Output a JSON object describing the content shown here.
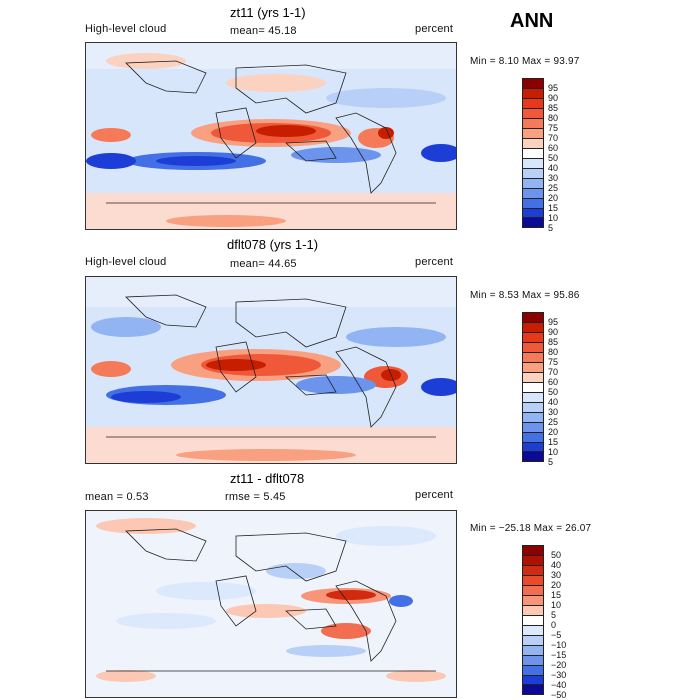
{
  "season": "ANN",
  "chart_data": [
    {
      "type": "heatmap",
      "title": "zt11 (yrs 1-1)",
      "left_label": "High-level cloud",
      "center_label": "mean=  45.18",
      "right_label": "percent",
      "stats": "Min =    8.10  Max =    93.97",
      "mean": 45.18,
      "min": 8.1,
      "max": 93.97,
      "levels": [
        "95",
        "90",
        "85",
        "80",
        "75",
        "70",
        "60",
        "50",
        "40",
        "30",
        "25",
        "20",
        "15",
        "10",
        "5"
      ],
      "colors": [
        "#8b0000",
        "#c81e00",
        "#e8381a",
        "#f0583a",
        "#f47a58",
        "#f8a080",
        "#fbd2c0",
        "#ffffff",
        "#d8e6fb",
        "#b8d0f8",
        "#93b4f2",
        "#6c94ec",
        "#4470e6",
        "#1d3ed6",
        "#0a0a96"
      ]
    },
    {
      "type": "heatmap",
      "title": "dflt078 (yrs 1-1)",
      "left_label": "High-level cloud",
      "center_label": "mean=  44.65",
      "right_label": "percent",
      "stats": "Min =    8.53  Max =    95.86",
      "mean": 44.65,
      "min": 8.53,
      "max": 95.86,
      "levels": [
        "95",
        "90",
        "85",
        "80",
        "75",
        "70",
        "60",
        "50",
        "40",
        "30",
        "25",
        "20",
        "15",
        "10",
        "5"
      ],
      "colors": [
        "#8b0000",
        "#c81e00",
        "#e8381a",
        "#f0583a",
        "#f47a58",
        "#f8a080",
        "#fbd2c0",
        "#ffffff",
        "#d8e6fb",
        "#b8d0f8",
        "#93b4f2",
        "#6c94ec",
        "#4470e6",
        "#1d3ed6",
        "#0a0a96"
      ]
    },
    {
      "type": "heatmap",
      "title": "zt11 - dflt078",
      "left_label": "mean =     0.53",
      "center_label": "rmse =     5.45",
      "right_label": "percent",
      "stats": "Min =  −25.18  Max =    26.07",
      "mean": 0.53,
      "rmse": 5.45,
      "min": -25.18,
      "max": 26.07,
      "levels": [
        "50",
        "40",
        "30",
        "20",
        "15",
        "10",
        "5",
        "0",
        "−5",
        "−10",
        "−15",
        "−20",
        "−30",
        "−40",
        "−50"
      ],
      "colors": [
        "#8b0000",
        "#b01000",
        "#d02a10",
        "#e84a2a",
        "#f26e50",
        "#f89478",
        "#fcc8b4",
        "#ffffff",
        "#dce8fb",
        "#b8d0f8",
        "#93b4f2",
        "#6c94ec",
        "#4470e6",
        "#1d3ed6",
        "#0a0a96"
      ]
    }
  ]
}
